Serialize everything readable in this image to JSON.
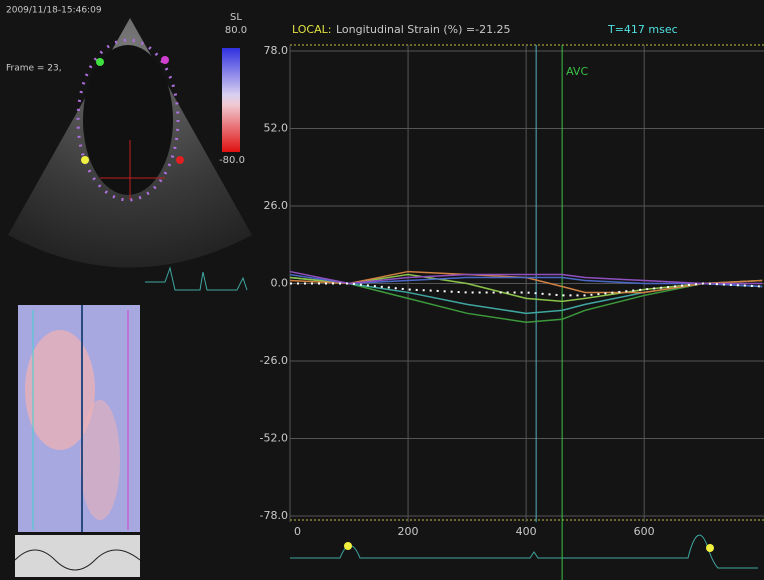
{
  "image_panel": {
    "timestamp": "2009/11/18-15:46:09",
    "frame": "Frame = 23,",
    "colorbar": {
      "label": "SL",
      "max": "80.0",
      "min": "-80.0"
    }
  },
  "chart_data": {
    "type": "line",
    "header": {
      "mode": "LOCAL:",
      "measure": "Longitudinal Strain (%) =-21.25",
      "time": "T=417 msec"
    },
    "x": [
      0,
      100,
      200,
      300,
      400,
      461,
      500,
      600,
      700,
      800
    ],
    "series": [
      {
        "color": "#3c9a3c",
        "values": [
          2,
          0,
          -5,
          -10,
          -13,
          -12,
          -9,
          -4,
          0,
          -1
        ]
      },
      {
        "color": "#3fa7a0",
        "values": [
          2,
          0,
          -3,
          -7,
          -10,
          -9,
          -7,
          -3,
          0,
          -1
        ]
      },
      {
        "color": "#8bc34a",
        "values": [
          2,
          0,
          3,
          0,
          -5,
          -6,
          -5,
          -2,
          0,
          1
        ]
      },
      {
        "color": "#d08040",
        "values": [
          1,
          0,
          4,
          3,
          2,
          -1,
          -3,
          -3,
          0,
          1
        ]
      },
      {
        "color": "#4a68c8",
        "values": [
          3,
          0,
          1,
          2,
          2,
          2,
          1,
          0,
          0,
          -1
        ]
      },
      {
        "color": "#9050c0",
        "values": [
          4,
          0,
          2,
          3,
          3,
          3,
          2,
          1,
          0,
          0
        ]
      },
      {
        "color": "#ffffff",
        "dotted": true,
        "values": [
          0,
          0,
          -2,
          -3,
          -3,
          -4,
          -4,
          -2,
          0,
          -1
        ]
      }
    ],
    "markers": [
      {
        "label": "AVC",
        "x": 461,
        "color": "#3cc043"
      }
    ],
    "cursor_x": 417,
    "xlim": [
      0,
      803
    ],
    "ylim": [
      -80,
      80
    ],
    "xticks": [
      0,
      200,
      400,
      600
    ],
    "yticks": [
      {
        "value": 78,
        "label": "78.0"
      },
      {
        "value": 52,
        "label": "52.0"
      },
      {
        "value": 26,
        "label": "26.0"
      },
      {
        "value": 0,
        "label": "0.0"
      },
      {
        "value": -26,
        "label": "-26.0"
      },
      {
        "value": -52,
        "label": "-52.0"
      },
      {
        "value": -78,
        "label": "-78.0"
      }
    ],
    "grid": true
  }
}
